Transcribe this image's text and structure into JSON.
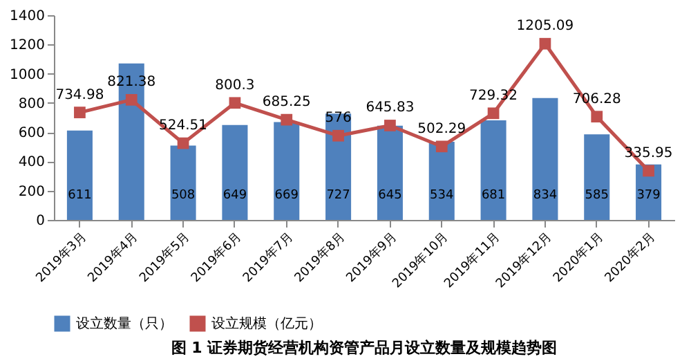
{
  "chart_data": {
    "type": "bar",
    "categories": [
      "2019年3月",
      "2019年4月",
      "2019年5月",
      "2019年6月",
      "2019年7月",
      "2019年8月",
      "2019年9月",
      "2019年10月",
      "2019年11月",
      "2019年12月",
      "2020年1月",
      "2020年2月"
    ],
    "series": [
      {
        "name": "设立数量（只）",
        "color": "#4f81bd",
        "values": [
          611,
          1070,
          508,
          649,
          669,
          727,
          645,
          534,
          681,
          834,
          585,
          379
        ],
        "value_labels": [
          "611",
          null,
          "508",
          "649",
          "669",
          "727",
          "645",
          "534",
          "681",
          "834",
          "585",
          "379"
        ]
      },
      {
        "name": "设立规模（亿元）",
        "type": "line",
        "color": "#c0504d",
        "values": [
          734.98,
          821.38,
          524.51,
          800.3,
          685.25,
          576,
          645.83,
          502.29,
          729.32,
          1205.09,
          706.28,
          335.95
        ],
        "value_labels": [
          "734.98",
          "821.38",
          "524.51",
          "800.3",
          "685.25",
          "576",
          "645.83",
          "502.29",
          "729.32",
          "1205.09",
          "706.28",
          "335.95"
        ]
      }
    ],
    "ylim": [
      0,
      1400
    ],
    "yticks": [
      0,
      200,
      400,
      600,
      800,
      1000,
      1200,
      1400
    ],
    "grid": false,
    "legend": "bottom",
    "marker": "square",
    "annotations": [
      "图 1  证券期货经营机构资管产品月设立数量及规模趋势图"
    ]
  }
}
